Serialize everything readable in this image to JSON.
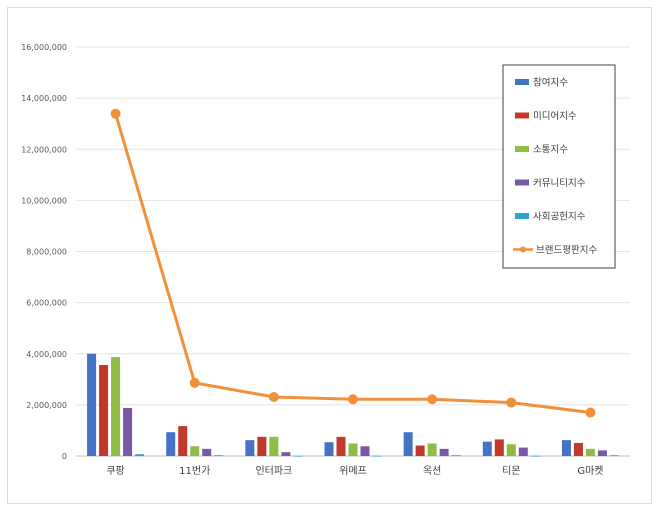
{
  "chart_data": {
    "type": "bar",
    "title": "",
    "xlabel": "",
    "ylabel": "",
    "ylim": [
      0,
      16000000
    ],
    "yticks": [
      "0",
      "2,000,000",
      "4,000,000",
      "6,000,000",
      "8,000,000",
      "10,000,000",
      "12,000,000",
      "14,000,000",
      "16,000,000"
    ],
    "ytick_values": [
      0,
      2000000,
      4000000,
      6000000,
      8000000,
      10000000,
      12000000,
      14000000,
      16000000
    ],
    "grid": true,
    "legend_position": "right",
    "categories": [
      "쿠팡",
      "11번가",
      "인터파크",
      "위메프",
      "옥션",
      "티몬",
      "G마켓"
    ],
    "series": [
      {
        "name": "참여지수",
        "type": "bar",
        "color": "#4472c4",
        "values": [
          4000000,
          930000,
          620000,
          540000,
          930000,
          560000,
          620000
        ]
      },
      {
        "name": "미디어지수",
        "type": "bar",
        "color": "#c0392b",
        "values": [
          3560000,
          1170000,
          750000,
          750000,
          410000,
          650000,
          510000
        ]
      },
      {
        "name": "소통지수",
        "type": "bar",
        "color": "#8fbc45",
        "values": [
          3870000,
          380000,
          750000,
          490000,
          490000,
          460000,
          280000
        ]
      },
      {
        "name": "커뮤니티지수",
        "type": "bar",
        "color": "#7b57a8",
        "values": [
          1880000,
          280000,
          150000,
          380000,
          280000,
          330000,
          220000
        ]
      },
      {
        "name": "사회공헌지수",
        "type": "bar",
        "color": "#2aa7c9",
        "values": [
          70000,
          30000,
          10000,
          10000,
          30000,
          10000,
          30000
        ]
      },
      {
        "name": "브랜드평판지수",
        "type": "line",
        "color": "#f0913a",
        "values": [
          13390000,
          2860000,
          2310000,
          2220000,
          2220000,
          2090000,
          1700000
        ]
      }
    ]
  }
}
